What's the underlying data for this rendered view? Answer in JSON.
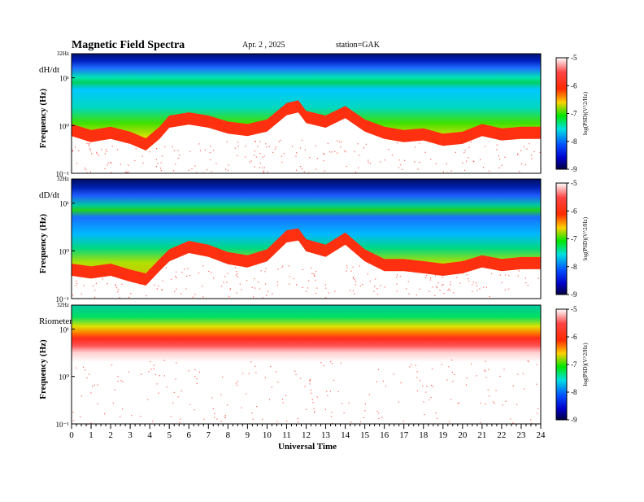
{
  "header": {
    "title": "Magnetic  Field  Spectra",
    "date": "Apr. 2  , 2025",
    "station": "station=GAK"
  },
  "xaxis": {
    "label": "Universal  Time",
    "ticks": [
      "0",
      "1",
      "2",
      "3",
      "4",
      "5",
      "6",
      "7",
      "8",
      "9",
      "10",
      "11",
      "12",
      "13",
      "14",
      "15",
      "16",
      "17",
      "18",
      "19",
      "20",
      "21",
      "22",
      "23",
      "24"
    ]
  },
  "colorbar": {
    "label": "log(PSD)(V^2/Hz)",
    "ticks": [
      "-5",
      "-6",
      "-7",
      "-8",
      "-9"
    ]
  },
  "chart_data": [
    {
      "type": "heatmap",
      "panel_label": "dH/dt",
      "ylabel": "Frequency  (Hz)",
      "y_tick_labels": [
        "32Hz",
        "10^1",
        "10^0",
        "10^-1"
      ],
      "y_scale": "log",
      "ylim": [
        0.1,
        32
      ],
      "xlim": [
        0,
        24
      ],
      "x_unit": "UT hours",
      "colorbar_range": [
        -9,
        -5
      ],
      "red_boundary_hz": [
        [
          0,
          0.8
        ],
        [
          1,
          0.6
        ],
        [
          2,
          0.7
        ],
        [
          3,
          0.55
        ],
        [
          3.8,
          0.4
        ],
        [
          4.5,
          0.7
        ],
        [
          5,
          1.2
        ],
        [
          6,
          1.4
        ],
        [
          7,
          1.2
        ],
        [
          8,
          0.9
        ],
        [
          9,
          0.8
        ],
        [
          10,
          1.0
        ],
        [
          11,
          2.2
        ],
        [
          11.6,
          2.5
        ],
        [
          12,
          1.5
        ],
        [
          13,
          1.2
        ],
        [
          14,
          1.9
        ],
        [
          15,
          1.0
        ],
        [
          16,
          0.7
        ],
        [
          17,
          0.6
        ],
        [
          18,
          0.65
        ],
        [
          19,
          0.5
        ],
        [
          20,
          0.55
        ],
        [
          21,
          0.8
        ],
        [
          22,
          0.65
        ],
        [
          23,
          0.7
        ],
        [
          24,
          0.7
        ]
      ]
    },
    {
      "type": "heatmap",
      "panel_label": "dD/dt",
      "ylabel": "Frequency  (Hz)",
      "y_tick_labels": [
        "32Hz",
        "10^1",
        "10^0",
        "10^-1"
      ],
      "y_scale": "log",
      "ylim": [
        0.1,
        32
      ],
      "xlim": [
        0,
        24
      ],
      "x_unit": "UT hours",
      "colorbar_range": [
        -9,
        -5
      ],
      "red_boundary_hz": [
        [
          0,
          0.4
        ],
        [
          1,
          0.35
        ],
        [
          2,
          0.4
        ],
        [
          3,
          0.3
        ],
        [
          3.8,
          0.25
        ],
        [
          4.5,
          0.5
        ],
        [
          5,
          0.8
        ],
        [
          6,
          1.2
        ],
        [
          7,
          1.0
        ],
        [
          8,
          0.7
        ],
        [
          9,
          0.6
        ],
        [
          10,
          0.8
        ],
        [
          11,
          2.0
        ],
        [
          11.6,
          2.2
        ],
        [
          12,
          1.3
        ],
        [
          13,
          1.0
        ],
        [
          14,
          1.8
        ],
        [
          15,
          0.8
        ],
        [
          16,
          0.5
        ],
        [
          17,
          0.5
        ],
        [
          18,
          0.45
        ],
        [
          19,
          0.4
        ],
        [
          20,
          0.45
        ],
        [
          21,
          0.6
        ],
        [
          22,
          0.5
        ],
        [
          23,
          0.55
        ],
        [
          24,
          0.55
        ]
      ]
    },
    {
      "type": "heatmap",
      "panel_label": "Riometer",
      "ylabel": "Frequency  (Hz)",
      "y_tick_labels": [
        "32Hz",
        "10^1",
        "10^0",
        "10^-1"
      ],
      "y_scale": "log",
      "ylim": [
        0.1,
        32
      ],
      "xlim": [
        0,
        24
      ],
      "x_unit": "UT hours",
      "colorbar_range": [
        -9,
        -5
      ],
      "red_boundary_hz": [
        [
          0,
          8
        ],
        [
          24,
          8
        ]
      ]
    }
  ]
}
